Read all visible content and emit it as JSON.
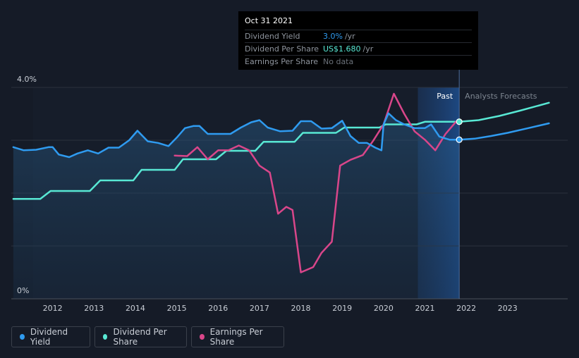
{
  "tooltip": {
    "date": "Oct 31 2021",
    "rows": [
      {
        "label": "Dividend Yield",
        "value": "3.0%",
        "unit": "/yr"
      },
      {
        "label": "Dividend Per Share",
        "value": "US$1.680",
        "unit": "/yr"
      },
      {
        "label": "Earnings Per Share",
        "value": "No data",
        "unit": ""
      }
    ]
  },
  "legend": [
    {
      "label": "Dividend Yield",
      "color": "#2f9bf0"
    },
    {
      "label": "Dividend Per Share",
      "color": "#58e8d4"
    },
    {
      "label": "Earnings Per Share",
      "color": "#d9468a"
    }
  ],
  "colors": {
    "yield": "#2f9bf0",
    "dps": "#58e8d4",
    "eps": "#d9468a",
    "bg": "#151b27"
  },
  "chart_data": {
    "type": "line",
    "title": "",
    "xlabel": "",
    "ylabel": "",
    "ylim": [
      0,
      4
    ],
    "xlim": [
      2011.0,
      2024.0
    ],
    "y_tick_labels": [
      {
        "label": "4.0%",
        "value": 4.0
      },
      {
        "label": "0%",
        "value": 0
      }
    ],
    "x_tick_labels": [
      "2012",
      "2013",
      "2014",
      "2015",
      "2016",
      "2017",
      "2018",
      "2019",
      "2020",
      "2021",
      "2022",
      "2023"
    ],
    "x_tick_values": [
      2012,
      2013,
      2014,
      2015,
      2016,
      2017,
      2018,
      2019,
      2020,
      2021,
      2022,
      2023
    ],
    "region_labels": {
      "past": "Past",
      "forecast": "Analysts Forecasts"
    },
    "forecast_start": 2021.83,
    "highlight_start": 2020.83,
    "marker_x": 2021.83,
    "series": [
      {
        "name": "Dividend Yield",
        "key": "yield",
        "area": true,
        "points": [
          [
            2011.05,
            2.87
          ],
          [
            2011.3,
            2.81
          ],
          [
            2011.6,
            2.82
          ],
          [
            2011.9,
            2.87
          ],
          [
            2012.0,
            2.87
          ],
          [
            2012.15,
            2.73
          ],
          [
            2012.4,
            2.68
          ],
          [
            2012.6,
            2.75
          ],
          [
            2012.85,
            2.81
          ],
          [
            2013.1,
            2.75
          ],
          [
            2013.35,
            2.86
          ],
          [
            2013.6,
            2.86
          ],
          [
            2013.85,
            3.0
          ],
          [
            2014.05,
            3.18
          ],
          [
            2014.3,
            2.98
          ],
          [
            2014.55,
            2.95
          ],
          [
            2014.8,
            2.89
          ],
          [
            2015.0,
            3.05
          ],
          [
            2015.2,
            3.23
          ],
          [
            2015.4,
            3.27
          ],
          [
            2015.55,
            3.27
          ],
          [
            2015.75,
            3.12
          ],
          [
            2016.0,
            3.12
          ],
          [
            2016.3,
            3.12
          ],
          [
            2016.55,
            3.24
          ],
          [
            2016.8,
            3.34
          ],
          [
            2017.0,
            3.38
          ],
          [
            2017.2,
            3.24
          ],
          [
            2017.5,
            3.17
          ],
          [
            2017.8,
            3.18
          ],
          [
            2018.0,
            3.36
          ],
          [
            2018.25,
            3.36
          ],
          [
            2018.5,
            3.22
          ],
          [
            2018.75,
            3.23
          ],
          [
            2019.0,
            3.37
          ],
          [
            2019.2,
            3.08
          ],
          [
            2019.4,
            2.95
          ],
          [
            2019.6,
            2.95
          ],
          [
            2019.8,
            2.86
          ],
          [
            2019.95,
            2.81
          ],
          [
            2020.0,
            3.3
          ],
          [
            2020.12,
            3.51
          ],
          [
            2020.3,
            3.38
          ],
          [
            2020.5,
            3.3
          ],
          [
            2020.75,
            3.23
          ],
          [
            2021.0,
            3.23
          ],
          [
            2021.15,
            3.3
          ],
          [
            2021.35,
            3.07
          ],
          [
            2021.6,
            3.01
          ],
          [
            2021.83,
            3.01
          ]
        ]
      },
      {
        "name": "Dividend Yield (forecast)",
        "key": "yield",
        "forecast": true,
        "points": [
          [
            2021.83,
            3.01
          ],
          [
            2022.2,
            3.03
          ],
          [
            2022.6,
            3.08
          ],
          [
            2023.0,
            3.14
          ],
          [
            2023.5,
            3.23
          ],
          [
            2024.0,
            3.32
          ]
        ]
      },
      {
        "name": "Dividend Per Share",
        "key": "dps",
        "area": false,
        "points": [
          [
            2011.05,
            1.89
          ],
          [
            2011.7,
            1.89
          ],
          [
            2011.95,
            2.04
          ],
          [
            2012.3,
            2.04
          ],
          [
            2012.9,
            2.04
          ],
          [
            2013.15,
            2.24
          ],
          [
            2013.5,
            2.24
          ],
          [
            2013.95,
            2.24
          ],
          [
            2014.15,
            2.44
          ],
          [
            2014.6,
            2.44
          ],
          [
            2014.95,
            2.44
          ],
          [
            2015.15,
            2.64
          ],
          [
            2015.6,
            2.64
          ],
          [
            2015.95,
            2.64
          ],
          [
            2016.2,
            2.8
          ],
          [
            2016.6,
            2.8
          ],
          [
            2016.9,
            2.8
          ],
          [
            2017.1,
            2.97
          ],
          [
            2017.5,
            2.97
          ],
          [
            2017.85,
            2.97
          ],
          [
            2018.05,
            3.14
          ],
          [
            2018.5,
            3.14
          ],
          [
            2018.85,
            3.14
          ],
          [
            2019.05,
            3.24
          ],
          [
            2019.5,
            3.24
          ],
          [
            2019.9,
            3.24
          ],
          [
            2020.05,
            3.3
          ],
          [
            2020.4,
            3.3
          ],
          [
            2020.8,
            3.3
          ],
          [
            2021.0,
            3.35
          ],
          [
            2021.5,
            3.35
          ],
          [
            2021.83,
            3.35
          ]
        ]
      },
      {
        "name": "Dividend Per Share (forecast)",
        "key": "dps",
        "forecast": true,
        "points": [
          [
            2021.83,
            3.35
          ],
          [
            2022.3,
            3.38
          ],
          [
            2022.8,
            3.46
          ],
          [
            2023.3,
            3.56
          ],
          [
            2024.0,
            3.71
          ]
        ]
      },
      {
        "name": "Earnings Per Share",
        "key": "eps",
        "area": false,
        "points": [
          [
            2014.95,
            2.71
          ],
          [
            2015.25,
            2.7
          ],
          [
            2015.5,
            2.87
          ],
          [
            2015.75,
            2.64
          ],
          [
            2016.0,
            2.81
          ],
          [
            2016.25,
            2.81
          ],
          [
            2016.5,
            2.9
          ],
          [
            2016.75,
            2.81
          ],
          [
            2017.0,
            2.52
          ],
          [
            2017.25,
            2.39
          ],
          [
            2017.45,
            1.61
          ],
          [
            2017.65,
            1.74
          ],
          [
            2017.8,
            1.68
          ],
          [
            2018.0,
            0.5
          ],
          [
            2018.3,
            0.6
          ],
          [
            2018.5,
            0.87
          ],
          [
            2018.75,
            1.08
          ],
          [
            2018.95,
            2.52
          ],
          [
            2019.2,
            2.63
          ],
          [
            2019.5,
            2.72
          ],
          [
            2019.75,
            2.99
          ],
          [
            2020.0,
            3.3
          ],
          [
            2020.25,
            3.88
          ],
          [
            2020.5,
            3.5
          ],
          [
            2020.75,
            3.17
          ],
          [
            2021.0,
            3.01
          ],
          [
            2021.25,
            2.81
          ],
          [
            2021.5,
            3.12
          ],
          [
            2021.75,
            3.35
          ]
        ]
      }
    ]
  }
}
